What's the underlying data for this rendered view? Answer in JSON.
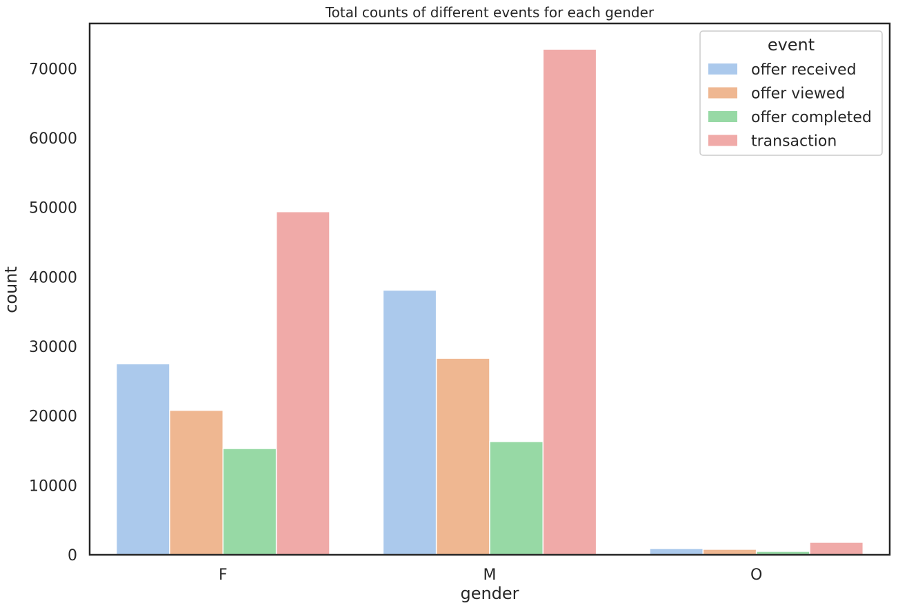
{
  "chart_data": {
    "type": "bar",
    "title": "Total counts of different events for each gender",
    "xlabel": "gender",
    "ylabel": "count",
    "categories": [
      "F",
      "M",
      "O"
    ],
    "ylim": [
      0,
      76500
    ],
    "yticks": [
      0,
      10000,
      20000,
      30000,
      40000,
      50000,
      60000,
      70000
    ],
    "ytick_labels": [
      "0",
      "10000",
      "20000",
      "30000",
      "40000",
      "50000",
      "60000",
      "70000"
    ],
    "grid": false,
    "legend": {
      "title": "event",
      "position": "top-right"
    },
    "series": [
      {
        "name": "offer received",
        "color": "#abc9ec",
        "values": [
          27500,
          38100,
          900
        ]
      },
      {
        "name": "offer viewed",
        "color": "#efb791",
        "values": [
          20800,
          28300,
          800
        ]
      },
      {
        "name": "offer completed",
        "color": "#97d9a5",
        "values": [
          15300,
          16300,
          500
        ]
      },
      {
        "name": "transaction",
        "color": "#f0aaa8",
        "values": [
          49400,
          72800,
          1800
        ]
      }
    ]
  }
}
